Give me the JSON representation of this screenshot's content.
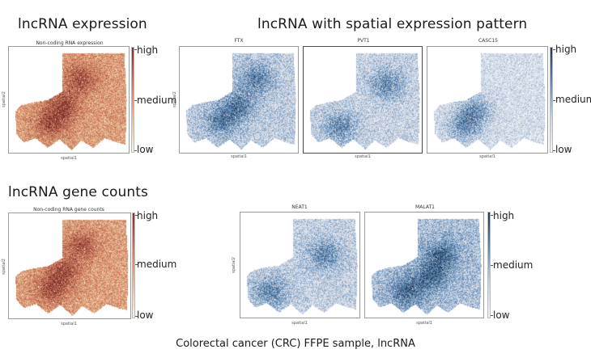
{
  "figure": {
    "caption": "Colorectal cancer (CRC) FFPE sample, lncRNA",
    "sections": {
      "expression": "lncRNA expression",
      "spatial_pattern": "lncRNA with spatial expression pattern",
      "gene_counts": "lncRNA gene counts"
    }
  },
  "colors": {
    "red_scale": [
      "#fbf3ea",
      "#e7b98d",
      "#c9745a",
      "#7a2f2a"
    ],
    "blue_scale": [
      "#f4f4f7",
      "#c9d3e2",
      "#5b87b4",
      "#1f3552"
    ]
  },
  "chart_data": [
    {
      "type": "heatmap",
      "id": "noncoding-expression",
      "title": "Non-coding RNA expression",
      "xlabel": "spatial1",
      "ylabel": "spatial2",
      "colormap": "red",
      "colorbar_labels": [
        "high",
        "medium",
        "low"
      ],
      "mean_intensity": 0.62,
      "hotspots": [
        [
          0.45,
          0.55
        ],
        [
          0.35,
          0.72
        ],
        [
          0.6,
          0.3
        ]
      ]
    },
    {
      "type": "heatmap",
      "id": "ftx",
      "title": "FTX",
      "xlabel": "spatial1",
      "ylabel": "spatial2",
      "colormap": "blue",
      "mean_intensity": 0.45,
      "hotspots": [
        [
          0.35,
          0.7
        ],
        [
          0.65,
          0.3
        ],
        [
          0.5,
          0.55
        ]
      ]
    },
    {
      "type": "heatmap",
      "id": "pvt1",
      "title": "PVT1",
      "xlabel": "spatial1",
      "ylabel": "",
      "colormap": "blue",
      "mean_intensity": 0.4,
      "hotspots": [
        [
          0.3,
          0.75
        ],
        [
          0.7,
          0.35
        ]
      ]
    },
    {
      "type": "heatmap",
      "id": "casc15",
      "title": "CASC15",
      "xlabel": "spatial1",
      "ylabel": "",
      "colormap": "blue",
      "colorbar_labels": [
        "high",
        "medium",
        "low"
      ],
      "mean_intensity": 0.3,
      "hotspots": [
        [
          0.4,
          0.6
        ],
        [
          0.3,
          0.75
        ]
      ]
    },
    {
      "type": "heatmap",
      "id": "noncoding-gene-counts",
      "title": "Non-coding RNA gene counts",
      "xlabel": "spatial1",
      "ylabel": "spatial2",
      "colormap": "red",
      "colorbar_labels": [
        "high",
        "medium",
        "low"
      ],
      "mean_intensity": 0.6,
      "hotspots": [
        [
          0.45,
          0.55
        ],
        [
          0.35,
          0.72
        ],
        [
          0.6,
          0.3
        ]
      ]
    },
    {
      "type": "heatmap",
      "id": "neat1",
      "title": "NEAT1",
      "xlabel": "spatial1",
      "ylabel": "spatial2",
      "colormap": "blue",
      "mean_intensity": 0.42,
      "hotspots": [
        [
          0.7,
          0.4
        ],
        [
          0.25,
          0.75
        ]
      ]
    },
    {
      "type": "heatmap",
      "id": "malat1",
      "title": "MALAT1",
      "xlabel": "spatial1",
      "ylabel": "",
      "colormap": "blue",
      "colorbar_labels": [
        "high",
        "medium",
        "low"
      ],
      "mean_intensity": 0.55,
      "hotspots": [
        [
          0.35,
          0.75
        ],
        [
          0.65,
          0.4
        ],
        [
          0.55,
          0.6
        ]
      ]
    }
  ]
}
